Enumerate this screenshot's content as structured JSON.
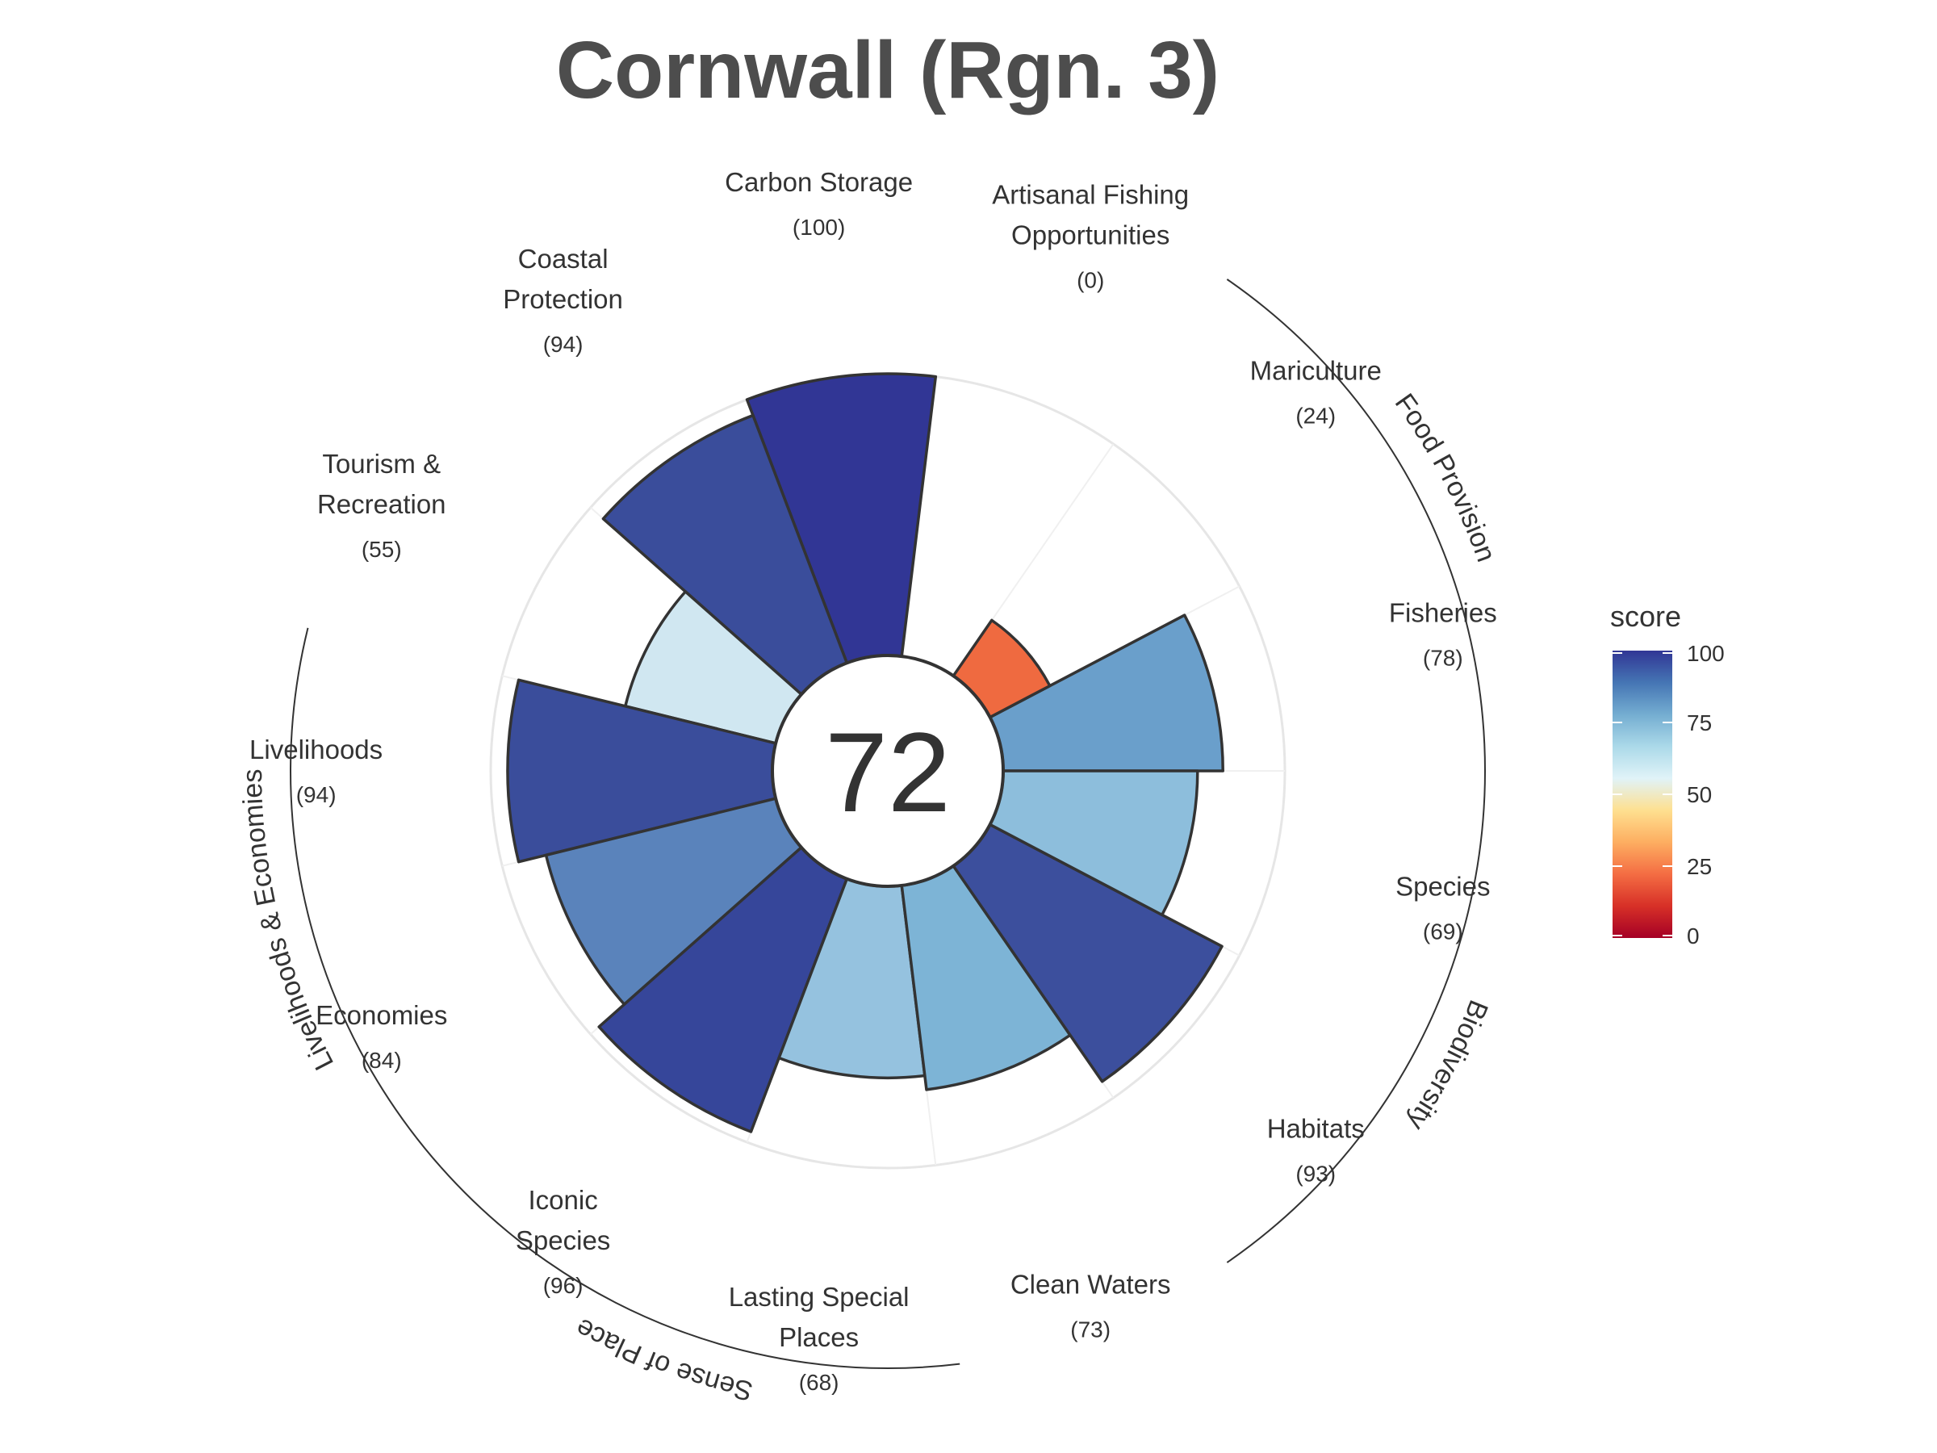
{
  "title": "Cornwall (Rgn. 3)",
  "chart_data": {
    "type": "polar-bar",
    "title": "Cornwall (Rgn. 3)",
    "center_score": "72",
    "scale_max": 100,
    "goals": [
      {
        "name": "Fisheries",
        "label_lines": [
          "Fisheries"
        ],
        "score": 78,
        "score_label": "(78)",
        "color": "#6a9fcb"
      },
      {
        "name": "Mariculture",
        "label_lines": [
          "Mariculture"
        ],
        "score": 24,
        "score_label": "(24)",
        "color": "#ef6a40"
      },
      {
        "name": "Artisanal Fishing Opportunities",
        "label_lines": [
          "Artisanal Fishing",
          "Opportunities"
        ],
        "score": 0,
        "score_label": "(0)",
        "color": "#a50026"
      },
      {
        "name": "Carbon Storage",
        "label_lines": [
          "Carbon Storage"
        ],
        "score": 100,
        "score_label": "(100)",
        "color": "#313695"
      },
      {
        "name": "Coastal Protection",
        "label_lines": [
          "Coastal",
          "Protection"
        ],
        "score": 94,
        "score_label": "(94)",
        "color": "#3a4d9b"
      },
      {
        "name": "Tourism & Recreation",
        "label_lines": [
          "Tourism &",
          "Recreation"
        ],
        "score": 55,
        "score_label": "(55)",
        "color": "#d0e7f1"
      },
      {
        "name": "Livelihoods",
        "label_lines": [
          "Livelihoods"
        ],
        "score": 94,
        "score_label": "(94)",
        "color": "#3a4d9b"
      },
      {
        "name": "Economies",
        "label_lines": [
          "Economies"
        ],
        "score": 84,
        "score_label": "(84)",
        "color": "#5a83bb"
      },
      {
        "name": "Iconic Species",
        "label_lines": [
          "Iconic",
          "Species"
        ],
        "score": 96,
        "score_label": "(96)",
        "color": "#36469a"
      },
      {
        "name": "Lasting Special Places",
        "label_lines": [
          "Lasting Special",
          "Places"
        ],
        "score": 68,
        "score_label": "(68)",
        "color": "#95c2df"
      },
      {
        "name": "Clean Waters",
        "label_lines": [
          "Clean Waters"
        ],
        "score": 73,
        "score_label": "(73)",
        "color": "#7db4d6"
      },
      {
        "name": "Habitats",
        "label_lines": [
          "Habitats"
        ],
        "score": 93,
        "score_label": "(93)",
        "color": "#3c4f9d"
      },
      {
        "name": "Species",
        "label_lines": [
          "Species"
        ],
        "score": 69,
        "score_label": "(69)",
        "color": "#8dbedc"
      }
    ],
    "groups": [
      {
        "name": "Food Provision",
        "goals": [
          "Fisheries",
          "Mariculture"
        ]
      },
      {
        "name": "Biodiversity",
        "goals": [
          "Habitats",
          "Species"
        ]
      },
      {
        "name": "Sense of Place",
        "goals": [
          "Iconic Species",
          "Lasting Special Places"
        ]
      },
      {
        "name": "Livelihoods & Economies",
        "goals": [
          "Livelihoods",
          "Economies"
        ]
      }
    ],
    "legend": {
      "title": "score",
      "ticks": [
        "100",
        "75",
        "50",
        "25",
        "0"
      ],
      "colors": [
        "#a50026",
        "#d73027",
        "#f46d43",
        "#fdae61",
        "#fee090",
        "#e0f3f8",
        "#abd9e9",
        "#74add1",
        "#4575b4",
        "#313695"
      ],
      "placement": "right"
    }
  }
}
